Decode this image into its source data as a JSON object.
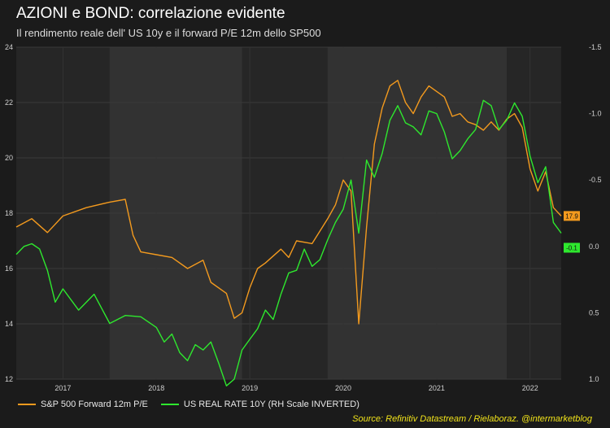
{
  "title": "AZIONI e BOND: correlazione evidente",
  "subtitle": "Il rendimento reale dell' US 10y e il forward P/E 12m dello SP500",
  "source": "Source: Refinitiv Datastream / Rielaboraz. @intermarketblog",
  "colors": {
    "background": "#1b1b1b",
    "plot_bg": "#262626",
    "shade": "#323232",
    "pe_series": "#f39a1e",
    "rate_series": "#2ee82e",
    "source_text": "#f0e21a"
  },
  "chart_data": {
    "type": "line",
    "xlim": [
      "2016-07",
      "2022-05"
    ],
    "x_tick_labels": [
      "2017",
      "2018",
      "2019",
      "2020",
      "2021",
      "2022"
    ],
    "x_tick_positions": [
      "2017-01",
      "2018-01",
      "2019-01",
      "2020-01",
      "2021-01",
      "2022-01"
    ],
    "shaded_periods": [
      [
        "2017-07",
        "2018-12"
      ],
      [
        "2019-11",
        "2021-10"
      ]
    ],
    "y_left": {
      "range": [
        12,
        24
      ],
      "ticks": [
        "12",
        "14",
        "16",
        "18",
        "20",
        "22",
        "24"
      ]
    },
    "y_right": {
      "range": [
        1.0,
        -1.5
      ],
      "inverted": true,
      "ticks": [
        "1.0",
        "0.5",
        "0.0",
        "-0.5",
        "-1.0",
        "-1.5"
      ]
    },
    "last_value_labels": {
      "pe": "17.9",
      "rate": "-0.1"
    },
    "series": [
      {
        "name": "S&P 500 Forward 12m P/E",
        "axis": "left",
        "points": [
          [
            "2016-07",
            17.5
          ],
          [
            "2016-09",
            17.8
          ],
          [
            "2016-11",
            17.3
          ],
          [
            "2017-01",
            17.9
          ],
          [
            "2017-04",
            18.2
          ],
          [
            "2017-07",
            18.4
          ],
          [
            "2017-09",
            18.5
          ],
          [
            "2017-10",
            17.2
          ],
          [
            "2017-11",
            16.6
          ],
          [
            "2018-01",
            16.5
          ],
          [
            "2018-03",
            16.4
          ],
          [
            "2018-05",
            16.0
          ],
          [
            "2018-07",
            16.3
          ],
          [
            "2018-08",
            15.5
          ],
          [
            "2018-10",
            15.1
          ],
          [
            "2018-11",
            14.2
          ],
          [
            "2018-12",
            14.4
          ],
          [
            "2019-01",
            15.3
          ],
          [
            "2019-02",
            16.0
          ],
          [
            "2019-03",
            16.2
          ],
          [
            "2019-05",
            16.7
          ],
          [
            "2019-06",
            16.4
          ],
          [
            "2019-07",
            17.0
          ],
          [
            "2019-09",
            16.9
          ],
          [
            "2019-11",
            17.8
          ],
          [
            "2019-12",
            18.3
          ],
          [
            "2020-01",
            19.2
          ],
          [
            "2020-02",
            18.8
          ],
          [
            "2020-03",
            14.0
          ],
          [
            "2020-04",
            17.5
          ],
          [
            "2020-05",
            20.5
          ],
          [
            "2020-06",
            21.8
          ],
          [
            "2020-07",
            22.6
          ],
          [
            "2020-08",
            22.8
          ],
          [
            "2020-09",
            22.0
          ],
          [
            "2020-10",
            21.6
          ],
          [
            "2020-11",
            22.2
          ],
          [
            "2020-12",
            22.6
          ],
          [
            "2021-01",
            22.4
          ],
          [
            "2021-02",
            22.2
          ],
          [
            "2021-03",
            21.5
          ],
          [
            "2021-04",
            21.6
          ],
          [
            "2021-05",
            21.3
          ],
          [
            "2021-06",
            21.2
          ],
          [
            "2021-07",
            21.0
          ],
          [
            "2021-08",
            21.3
          ],
          [
            "2021-09",
            21.0
          ],
          [
            "2021-10",
            21.4
          ],
          [
            "2021-11",
            21.6
          ],
          [
            "2021-12",
            21.1
          ],
          [
            "2022-01",
            19.6
          ],
          [
            "2022-02",
            18.8
          ],
          [
            "2022-03",
            19.5
          ],
          [
            "2022-04",
            18.2
          ],
          [
            "2022-05",
            17.9
          ]
        ]
      },
      {
        "name": "US REAL RATE 10Y (RH Scale INVERTED)",
        "axis": "right",
        "points": [
          [
            "2016-07",
            0.06
          ],
          [
            "2016-08",
            0.0
          ],
          [
            "2016-09",
            -0.02
          ],
          [
            "2016-10",
            0.02
          ],
          [
            "2016-11",
            0.18
          ],
          [
            "2016-12",
            0.42
          ],
          [
            "2017-01",
            0.32
          ],
          [
            "2017-03",
            0.48
          ],
          [
            "2017-05",
            0.36
          ],
          [
            "2017-07",
            0.58
          ],
          [
            "2017-09",
            0.52
          ],
          [
            "2017-11",
            0.53
          ],
          [
            "2018-01",
            0.61
          ],
          [
            "2018-02",
            0.72
          ],
          [
            "2018-03",
            0.66
          ],
          [
            "2018-04",
            0.8
          ],
          [
            "2018-05",
            0.86
          ],
          [
            "2018-06",
            0.74
          ],
          [
            "2018-07",
            0.78
          ],
          [
            "2018-08",
            0.72
          ],
          [
            "2018-09",
            0.88
          ],
          [
            "2018-10",
            1.05
          ],
          [
            "2018-11",
            1.0
          ],
          [
            "2018-12",
            0.78
          ],
          [
            "2019-01",
            0.7
          ],
          [
            "2019-02",
            0.62
          ],
          [
            "2019-03",
            0.48
          ],
          [
            "2019-04",
            0.55
          ],
          [
            "2019-05",
            0.36
          ],
          [
            "2019-06",
            0.2
          ],
          [
            "2019-07",
            0.18
          ],
          [
            "2019-08",
            0.02
          ],
          [
            "2019-09",
            0.15
          ],
          [
            "2019-10",
            0.1
          ],
          [
            "2019-11",
            -0.05
          ],
          [
            "2019-12",
            -0.18
          ],
          [
            "2020-01",
            -0.28
          ],
          [
            "2020-02",
            -0.5
          ],
          [
            "2020-03",
            -0.1
          ],
          [
            "2020-04",
            -0.65
          ],
          [
            "2020-05",
            -0.52
          ],
          [
            "2020-06",
            -0.7
          ],
          [
            "2020-07",
            -0.95
          ],
          [
            "2020-08",
            -1.06
          ],
          [
            "2020-09",
            -0.93
          ],
          [
            "2020-10",
            -0.9
          ],
          [
            "2020-11",
            -0.84
          ],
          [
            "2020-12",
            -1.02
          ],
          [
            "2021-01",
            -1.0
          ],
          [
            "2021-02",
            -0.86
          ],
          [
            "2021-03",
            -0.66
          ],
          [
            "2021-04",
            -0.72
          ],
          [
            "2021-05",
            -0.81
          ],
          [
            "2021-06",
            -0.88
          ],
          [
            "2021-07",
            -1.1
          ],
          [
            "2021-08",
            -1.06
          ],
          [
            "2021-09",
            -0.88
          ],
          [
            "2021-10",
            -0.95
          ],
          [
            "2021-11",
            -1.08
          ],
          [
            "2021-12",
            -0.98
          ],
          [
            "2022-01",
            -0.68
          ],
          [
            "2022-02",
            -0.48
          ],
          [
            "2022-03",
            -0.6
          ],
          [
            "2022-04",
            -0.18
          ],
          [
            "2022-05",
            -0.1
          ]
        ]
      }
    ]
  }
}
